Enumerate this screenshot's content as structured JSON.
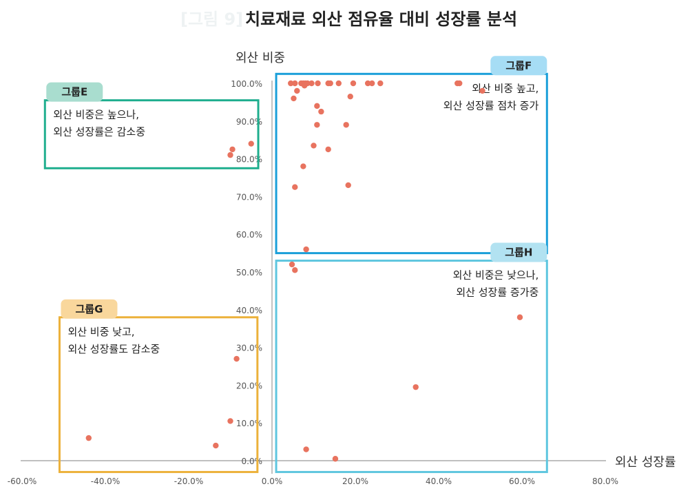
{
  "chart_data": {
    "type": "scatter",
    "figure_label": "[그림 9]",
    "title": "치료재료 외산 점유율 대비 성장률 분석",
    "xlabel": "외산 성장률",
    "ylabel": "외산 비중",
    "xlim": [
      -60,
      80
    ],
    "ylim": [
      0,
      100
    ],
    "x_ticks": [
      "-60.0%",
      "-40.0%",
      "-20.0%",
      "0.0%",
      "20.0%",
      "40.0%",
      "60.0%",
      "80.0%"
    ],
    "y_ticks": [
      "0.0%",
      "10.0%",
      "20.0%",
      "30.0%",
      "40.0%",
      "50.0%",
      "60.0%",
      "70.0%",
      "80.0%",
      "90.0%",
      "100.0%"
    ],
    "point_color": "#e8735f",
    "points": [
      {
        "x": 4.5,
        "y": 100
      },
      {
        "x": 5.5,
        "y": 100
      },
      {
        "x": 7.0,
        "y": 100
      },
      {
        "x": 7.5,
        "y": 100
      },
      {
        "x": 8.0,
        "y": 100
      },
      {
        "x": 8.5,
        "y": 100
      },
      {
        "x": 9.5,
        "y": 100
      },
      {
        "x": 11.0,
        "y": 100
      },
      {
        "x": 13.5,
        "y": 100
      },
      {
        "x": 14.0,
        "y": 100
      },
      {
        "x": 16.0,
        "y": 100
      },
      {
        "x": 19.5,
        "y": 100
      },
      {
        "x": 23.0,
        "y": 100
      },
      {
        "x": 24.0,
        "y": 100
      },
      {
        "x": 26.0,
        "y": 100
      },
      {
        "x": 44.5,
        "y": 100
      },
      {
        "x": 45.0,
        "y": 100
      },
      {
        "x": 7.8,
        "y": 99.4
      },
      {
        "x": 6.0,
        "y": 98.0
      },
      {
        "x": 50.5,
        "y": 98.0
      },
      {
        "x": 5.2,
        "y": 96.0
      },
      {
        "x": 10.8,
        "y": 94.0
      },
      {
        "x": 11.8,
        "y": 92.5
      },
      {
        "x": 10.8,
        "y": 89.0
      },
      {
        "x": 17.8,
        "y": 89.0
      },
      {
        "x": 18.8,
        "y": 96.5
      },
      {
        "x": 10.0,
        "y": 83.5
      },
      {
        "x": 13.5,
        "y": 82.5
      },
      {
        "x": 7.5,
        "y": 78.0
      },
      {
        "x": 5.5,
        "y": 72.5
      },
      {
        "x": 18.3,
        "y": 73.0
      },
      {
        "x": -9.5,
        "y": 82.5
      },
      {
        "x": -10.0,
        "y": 81.0
      },
      {
        "x": -5.0,
        "y": 84.0
      },
      {
        "x": 8.2,
        "y": 56.0
      },
      {
        "x": 4.8,
        "y": 52.0
      },
      {
        "x": 5.5,
        "y": 50.5
      },
      {
        "x": 59.5,
        "y": 38.0
      },
      {
        "x": 34.5,
        "y": 19.5
      },
      {
        "x": 8.2,
        "y": 3.0
      },
      {
        "x": 15.2,
        "y": 0.5
      },
      {
        "x": -8.5,
        "y": 27.0
      },
      {
        "x": -10.0,
        "y": 10.5
      },
      {
        "x": -13.5,
        "y": 4.0
      },
      {
        "x": -44.0,
        "y": 6.0
      }
    ],
    "groups": [
      {
        "id": "E",
        "label": "그룹E",
        "color": "#1fae8e",
        "tab_color": "#a9ddcf",
        "x_range": [
          -54.5,
          -3.3
        ],
        "y_range": [
          77.5,
          95.5
        ],
        "note_lines": [
          "외산 비중은 높으나,",
          "외산 성장률은 감소중"
        ],
        "note_align": "left"
      },
      {
        "id": "F",
        "label": "그룹F",
        "color": "#1a9fd9",
        "tab_color": "#a6ddf5",
        "x_range": [
          1.0,
          66.0
        ],
        "y_range": [
          55.0,
          102.5
        ],
        "note_lines": [
          "외산 비중 높고,",
          "외산 성장률 점차 증가"
        ],
        "note_align": "right"
      },
      {
        "id": "G",
        "label": "그룹G",
        "color": "#ecb13a",
        "tab_color": "#f9d79c",
        "x_range": [
          -51.0,
          -3.5
        ],
        "y_range": [
          -3.0,
          38.0
        ],
        "note_lines": [
          "외산 비중 낮고,",
          "외산 성장률도 감소중"
        ],
        "note_align": "left"
      },
      {
        "id": "H",
        "label": "그룹H",
        "color": "#5ec6df",
        "tab_color": "#b2e2f1",
        "x_range": [
          1.0,
          66.0
        ],
        "y_range": [
          -3.0,
          53.0
        ],
        "note_lines": [
          "외산 비중은 낮으나,",
          "외산 성장률 증가중"
        ],
        "note_align": "right"
      }
    ]
  }
}
